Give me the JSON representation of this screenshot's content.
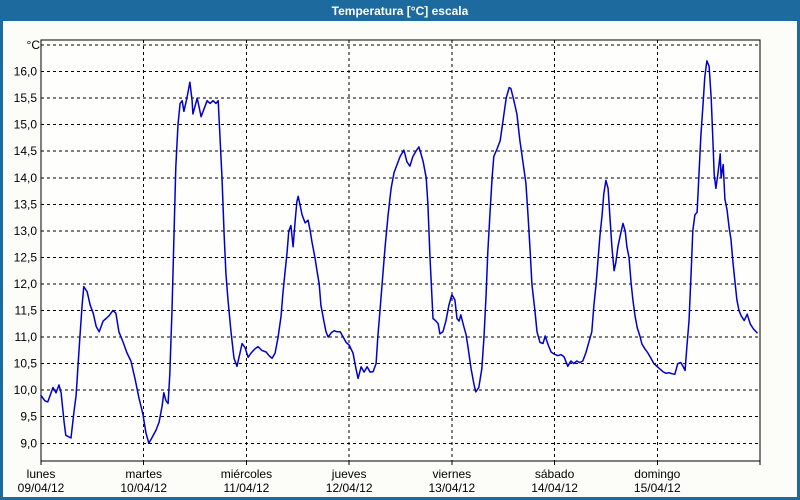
{
  "window": {
    "title": "Temperatura [°C] escala"
  },
  "colors": {
    "frame": "#1c6a9e",
    "titlebar_text": "#ffffff",
    "content_background": "#fcfdf9",
    "plot_background": "#fefefc",
    "plot_border": "#000000",
    "gridline": "#000000",
    "axis_text": "#000000",
    "series_line": "#0000cd"
  },
  "chart_data": {
    "type": "line",
    "title": "Temperatura [°C] escala",
    "ylabel": "°C",
    "grid": "dashed, horizontal every 0.5 °C and vertical at each day boundary",
    "legend": "none",
    "y_axis": {
      "min": 9.0,
      "max": 16.0,
      "step": 0.5,
      "unlabeled_top_gridline": 16.5,
      "tick_values": [
        9.0,
        9.5,
        10.0,
        10.5,
        11.0,
        11.5,
        12.0,
        12.5,
        13.0,
        13.5,
        14.0,
        14.5,
        15.0,
        15.5,
        16.0
      ],
      "tick_labels": [
        "9,0",
        "9,5",
        "10,0",
        "10,5",
        "11,0",
        "11,5",
        "12,0",
        "12,5",
        "13,0",
        "13,5",
        "14,0",
        "14,5",
        "15,0",
        "15,5",
        "16,0"
      ]
    },
    "x_axis": {
      "unit": "hours_from_start",
      "range_hours": [
        0,
        168
      ],
      "day_gridlines_hours": [
        24,
        48,
        72,
        96,
        120,
        144
      ],
      "days": [
        {
          "name": "lunes",
          "date": "09/04/12"
        },
        {
          "name": "martes",
          "date": "10/04/12"
        },
        {
          "name": "miércoles",
          "date": "11/04/12"
        },
        {
          "name": "jueves",
          "date": "12/04/12"
        },
        {
          "name": "viernes",
          "date": "13/04/12"
        },
        {
          "name": "sábado",
          "date": "14/04/12"
        },
        {
          "name": "domingo",
          "date": "15/04/12"
        }
      ]
    },
    "series": [
      {
        "name": "Temperatura",
        "color": "#0000cd",
        "points": [
          [
            0,
            9.9
          ],
          [
            0.9,
            9.8
          ],
          [
            1.6,
            9.78
          ],
          [
            2.8,
            10.05
          ],
          [
            3.5,
            9.95
          ],
          [
            4.2,
            10.1
          ],
          [
            4.7,
            9.95
          ],
          [
            5.4,
            9.4
          ],
          [
            5.8,
            9.15
          ],
          [
            7,
            9.1
          ],
          [
            7.7,
            9.6
          ],
          [
            8.2,
            9.9
          ],
          [
            8.6,
            10.4
          ],
          [
            9.1,
            11
          ],
          [
            9.6,
            11.6
          ],
          [
            10,
            11.95
          ],
          [
            10.8,
            11.85
          ],
          [
            11.5,
            11.6
          ],
          [
            12.2,
            11.45
          ],
          [
            12.9,
            11.2
          ],
          [
            13.6,
            11.1
          ],
          [
            14.5,
            11.3
          ],
          [
            15.2,
            11.35
          ],
          [
            15.9,
            11.4
          ],
          [
            16.8,
            11.5
          ],
          [
            17.5,
            11.45
          ],
          [
            18.2,
            11.1
          ],
          [
            19.2,
            10.9
          ],
          [
            20.1,
            10.7
          ],
          [
            21,
            10.55
          ],
          [
            22,
            10.2
          ],
          [
            22.9,
            9.85
          ],
          [
            23.8,
            9.55
          ],
          [
            24.5,
            9.2
          ],
          [
            25.2,
            9
          ],
          [
            25.9,
            9.1
          ],
          [
            26.9,
            9.25
          ],
          [
            27.6,
            9.4
          ],
          [
            28.3,
            9.7
          ],
          [
            28.7,
            9.95
          ],
          [
            29.2,
            9.8
          ],
          [
            29.7,
            9.75
          ],
          [
            30.1,
            10.3
          ],
          [
            30.6,
            11.5
          ],
          [
            31.1,
            13
          ],
          [
            31.5,
            14.2
          ],
          [
            32,
            15
          ],
          [
            32.5,
            15.4
          ],
          [
            33,
            15.45
          ],
          [
            33.4,
            15.25
          ],
          [
            34.1,
            15.5
          ],
          [
            34.8,
            15.8
          ],
          [
            35.3,
            15.45
          ],
          [
            35.5,
            15.2
          ],
          [
            36,
            15.35
          ],
          [
            36.5,
            15.5
          ],
          [
            36.9,
            15.35
          ],
          [
            37.4,
            15.15
          ],
          [
            38.1,
            15.3
          ],
          [
            38.8,
            15.45
          ],
          [
            39.5,
            15.4
          ],
          [
            40.2,
            15.45
          ],
          [
            40.9,
            15.4
          ],
          [
            41.4,
            15.45
          ],
          [
            41.8,
            14.8
          ],
          [
            42.3,
            14
          ],
          [
            42.8,
            12.9
          ],
          [
            43.2,
            12.2
          ],
          [
            43.7,
            11.7
          ],
          [
            44.4,
            11.1
          ],
          [
            45.1,
            10.6
          ],
          [
            45.8,
            10.45
          ],
          [
            46.5,
            10.7
          ],
          [
            47,
            10.88
          ],
          [
            47.7,
            10.8
          ],
          [
            48.4,
            10.62
          ],
          [
            49.1,
            10.7
          ],
          [
            50,
            10.78
          ],
          [
            50.7,
            10.82
          ],
          [
            51.6,
            10.75
          ],
          [
            52.6,
            10.72
          ],
          [
            53.3,
            10.65
          ],
          [
            54,
            10.6
          ],
          [
            54.7,
            10.7
          ],
          [
            55.4,
            11
          ],
          [
            56.1,
            11.4
          ],
          [
            56.5,
            11.8
          ],
          [
            57,
            12.2
          ],
          [
            57.5,
            12.6
          ],
          [
            57.9,
            13
          ],
          [
            58.4,
            13.1
          ],
          [
            58.9,
            12.7
          ],
          [
            59.4,
            13.2
          ],
          [
            59.8,
            13.55
          ],
          [
            60.1,
            13.65
          ],
          [
            60.5,
            13.5
          ],
          [
            61,
            13.3
          ],
          [
            61.7,
            13.15
          ],
          [
            62.4,
            13.2
          ],
          [
            62.9,
            13
          ],
          [
            63.3,
            12.8
          ],
          [
            64,
            12.5
          ],
          [
            64.5,
            12.25
          ],
          [
            65,
            12
          ],
          [
            65.4,
            11.6
          ],
          [
            66.1,
            11.3
          ],
          [
            66.6,
            11.1
          ],
          [
            67.1,
            11
          ],
          [
            67.8,
            11.08
          ],
          [
            68.5,
            11.12
          ],
          [
            69.2,
            11.1
          ],
          [
            69.9,
            11.1
          ],
          [
            70.6,
            11
          ],
          [
            71.3,
            10.9
          ],
          [
            72,
            10.85
          ],
          [
            72.9,
            10.7
          ],
          [
            73.6,
            10.4
          ],
          [
            74.1,
            10.22
          ],
          [
            74.8,
            10.44
          ],
          [
            75.5,
            10.34
          ],
          [
            76.2,
            10.44
          ],
          [
            76.9,
            10.34
          ],
          [
            77.6,
            10.35
          ],
          [
            78.3,
            10.5
          ],
          [
            78.7,
            11
          ],
          [
            79.2,
            11.5
          ],
          [
            79.7,
            12
          ],
          [
            80.4,
            12.7
          ],
          [
            81.1,
            13.3
          ],
          [
            81.8,
            13.8
          ],
          [
            82.5,
            14.1
          ],
          [
            83.2,
            14.25
          ],
          [
            83.9,
            14.4
          ],
          [
            84.8,
            14.52
          ],
          [
            85.5,
            14.3
          ],
          [
            86.2,
            14.22
          ],
          [
            86.9,
            14.4
          ],
          [
            87.6,
            14.5
          ],
          [
            88.3,
            14.58
          ],
          [
            88.8,
            14.45
          ],
          [
            89.3,
            14.3
          ],
          [
            90,
            14
          ],
          [
            90.4,
            13.5
          ],
          [
            90.9,
            12.5
          ],
          [
            91.6,
            11.35
          ],
          [
            92.3,
            11.3
          ],
          [
            92.8,
            11.25
          ],
          [
            93.2,
            11.06
          ],
          [
            93.9,
            11.1
          ],
          [
            94.6,
            11.3
          ],
          [
            95.3,
            11.6
          ],
          [
            96,
            11.8
          ],
          [
            96.7,
            11.7
          ],
          [
            97.2,
            11.35
          ],
          [
            97.7,
            11.3
          ],
          [
            98.1,
            11.42
          ],
          [
            98.8,
            11.2
          ],
          [
            99.3,
            11.05
          ],
          [
            99.8,
            10.8
          ],
          [
            100.5,
            10.4
          ],
          [
            101.2,
            10.1
          ],
          [
            101.6,
            9.97
          ],
          [
            102.3,
            10.05
          ],
          [
            103,
            10.4
          ],
          [
            103.5,
            11
          ],
          [
            104,
            11.8
          ],
          [
            104.4,
            12.6
          ],
          [
            104.9,
            13.3
          ],
          [
            105.4,
            14
          ],
          [
            105.8,
            14.4
          ],
          [
            106.6,
            14.55
          ],
          [
            107.3,
            14.7
          ],
          [
            108,
            15.1
          ],
          [
            108.7,
            15.5
          ],
          [
            109.4,
            15.7
          ],
          [
            109.8,
            15.68
          ],
          [
            110.5,
            15.45
          ],
          [
            111.2,
            15.2
          ],
          [
            111.9,
            14.7
          ],
          [
            112.6,
            14.3
          ],
          [
            113.3,
            13.9
          ],
          [
            113.8,
            13.3
          ],
          [
            114.3,
            12.6
          ],
          [
            114.7,
            12
          ],
          [
            115.4,
            11.5
          ],
          [
            115.9,
            11.1
          ],
          [
            116.6,
            10.9
          ],
          [
            117.3,
            10.88
          ],
          [
            117.8,
            11.02
          ],
          [
            118.5,
            10.85
          ],
          [
            119.2,
            10.72
          ],
          [
            119.9,
            10.68
          ],
          [
            120.8,
            10.65
          ],
          [
            121.5,
            10.67
          ],
          [
            122.2,
            10.63
          ],
          [
            123.1,
            10.45
          ],
          [
            123.8,
            10.55
          ],
          [
            124.5,
            10.5
          ],
          [
            125.2,
            10.55
          ],
          [
            125.9,
            10.52
          ],
          [
            126.6,
            10.55
          ],
          [
            127.3,
            10.7
          ],
          [
            128,
            10.9
          ],
          [
            128.7,
            11.1
          ],
          [
            129.2,
            11.6
          ],
          [
            129.7,
            12
          ],
          [
            130.1,
            12.4
          ],
          [
            130.6,
            12.9
          ],
          [
            131.1,
            13.3
          ],
          [
            131.5,
            13.7
          ],
          [
            132,
            13.95
          ],
          [
            132.5,
            13.8
          ],
          [
            132.9,
            13.3
          ],
          [
            133.4,
            12.7
          ],
          [
            133.9,
            12.25
          ],
          [
            134.3,
            12.4
          ],
          [
            134.8,
            12.7
          ],
          [
            135.3,
            12.9
          ],
          [
            136,
            13.14
          ],
          [
            136.5,
            13
          ],
          [
            136.9,
            12.7
          ],
          [
            137.4,
            12.5
          ],
          [
            137.9,
            12
          ],
          [
            138.3,
            11.7
          ],
          [
            138.8,
            11.4
          ],
          [
            139.3,
            11.18
          ],
          [
            140,
            11
          ],
          [
            140.4,
            10.87
          ],
          [
            141.1,
            10.78
          ],
          [
            141.8,
            10.7
          ],
          [
            142.5,
            10.6
          ],
          [
            143.2,
            10.5
          ],
          [
            143.9,
            10.45
          ],
          [
            144.6,
            10.4
          ],
          [
            145.3,
            10.35
          ],
          [
            146,
            10.32
          ],
          [
            146.7,
            10.33
          ],
          [
            147.4,
            10.31
          ],
          [
            148.1,
            10.3
          ],
          [
            148.8,
            10.5
          ],
          [
            149.5,
            10.52
          ],
          [
            150,
            10.45
          ],
          [
            150.5,
            10.37
          ],
          [
            150.9,
            10.8
          ],
          [
            151.4,
            11.3
          ],
          [
            151.9,
            12.2
          ],
          [
            152.3,
            13
          ],
          [
            152.8,
            13.3
          ],
          [
            153.3,
            13.35
          ],
          [
            153.7,
            14
          ],
          [
            154.2,
            14.8
          ],
          [
            154.7,
            15.4
          ],
          [
            155.1,
            15.9
          ],
          [
            155.6,
            16.2
          ],
          [
            156.1,
            16.1
          ],
          [
            156.6,
            15.5
          ],
          [
            157,
            14.7
          ],
          [
            157.3,
            14.06
          ],
          [
            157.7,
            13.8
          ],
          [
            158.2,
            14.1
          ],
          [
            158.7,
            14.45
          ],
          [
            158.9,
            14
          ],
          [
            159.4,
            14.25
          ],
          [
            159.8,
            13.6
          ],
          [
            160.3,
            13.4
          ],
          [
            160.8,
            13.05
          ],
          [
            161.2,
            12.85
          ],
          [
            161.7,
            12.4
          ],
          [
            162.2,
            12
          ],
          [
            162.6,
            11.7
          ],
          [
            163.1,
            11.5
          ],
          [
            163.6,
            11.4
          ],
          [
            164.3,
            11.31
          ],
          [
            165,
            11.43
          ],
          [
            165.7,
            11.25
          ],
          [
            166.4,
            11.16
          ],
          [
            167.3,
            11.08
          ]
        ]
      }
    ]
  }
}
